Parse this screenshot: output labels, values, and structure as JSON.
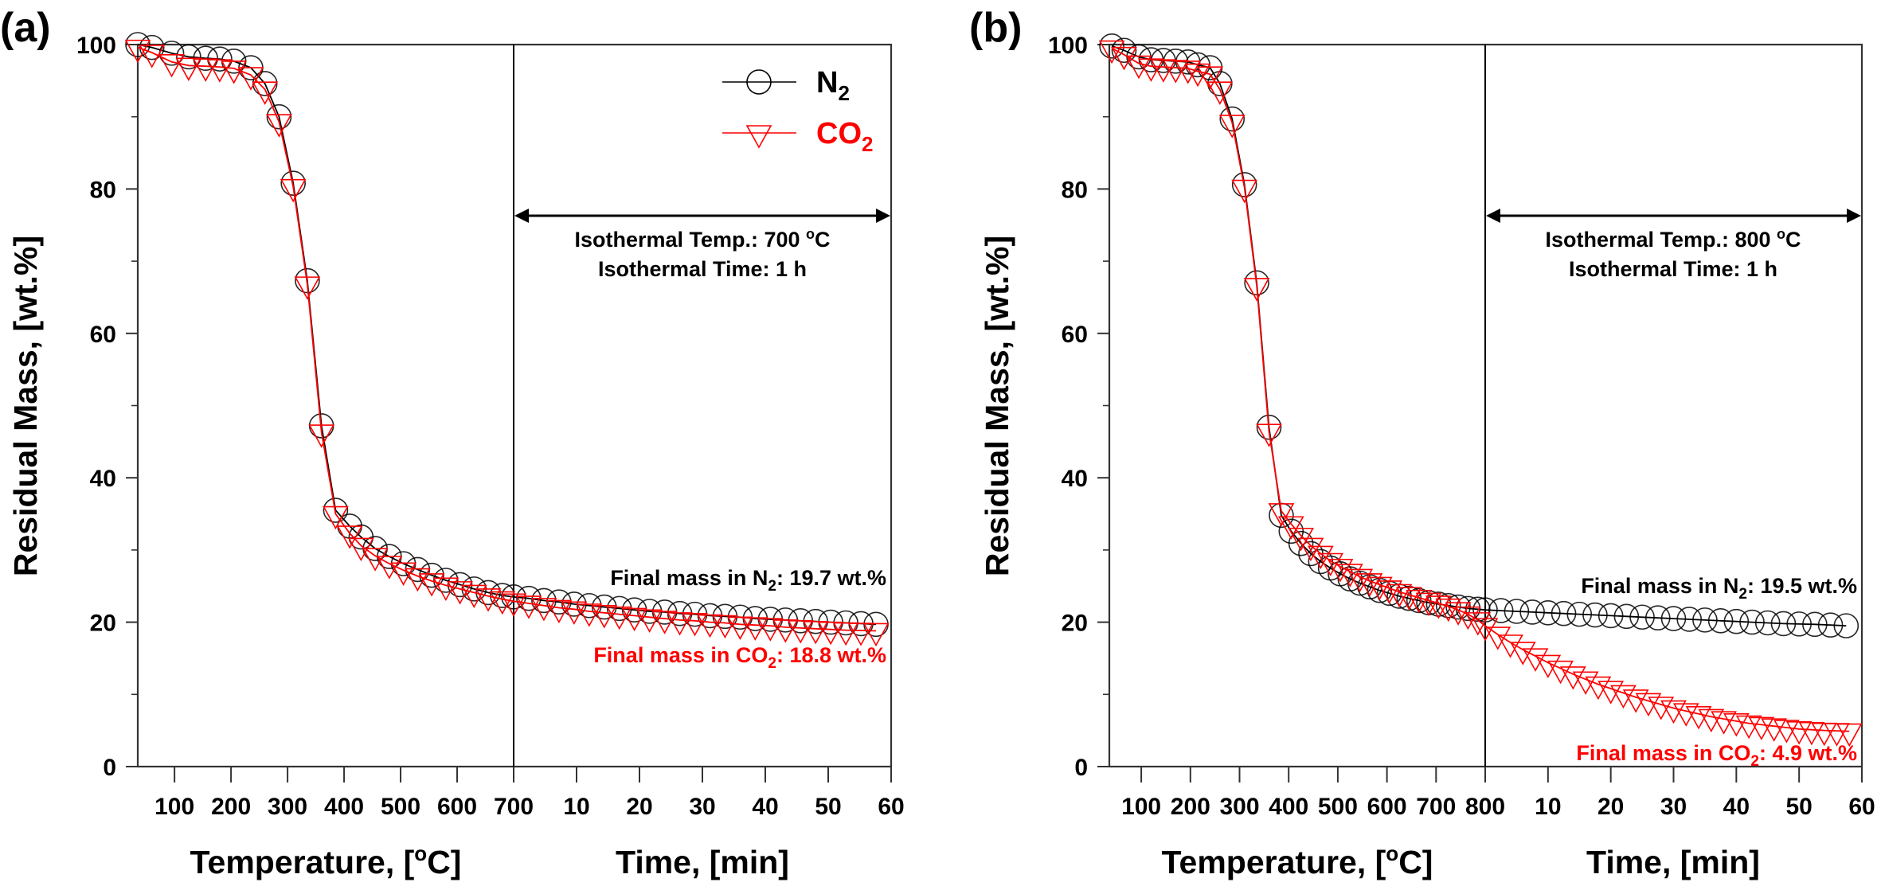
{
  "chart_data": [
    {
      "panel_label": "(a)",
      "type": "line",
      "ylabel": "Residual Mass, [wt.%]",
      "ylim": [
        0,
        100
      ],
      "yticks": [
        "0",
        "20",
        "40",
        "60",
        "80",
        "100"
      ],
      "x_segments": [
        {
          "xlabel_main": "Temperature, [",
          "xlabel_sup": "o",
          "xlabel_end": "C]",
          "unit": "temperature",
          "xlim": [
            35,
            700
          ],
          "ticks": [
            "100",
            "200",
            "300",
            "400",
            "500",
            "600",
            "700"
          ]
        },
        {
          "xlabel_main": "Time, [min]",
          "unit": "time",
          "xlim": [
            0,
            60
          ],
          "ticks": [
            "10",
            "20",
            "30",
            "40",
            "50",
            "60"
          ]
        }
      ],
      "legend": {
        "position": "top-right",
        "entries": [
          {
            "label": "N",
            "sub": "2",
            "marker": "circle",
            "color": "#000000"
          },
          {
            "label": "CO",
            "sub": "2",
            "marker": "triangle-down",
            "color": "#ff0000"
          }
        ]
      },
      "annotations": {
        "isothermal_temp": "Isothermal Temp.: 700 ",
        "isothermal_temp_sup": "o",
        "isothermal_temp_end": "C",
        "isothermal_time": "Isothermal Time: 1 h",
        "final_n2_pre": "Final mass in N",
        "final_n2_sub": "2",
        "final_n2_post": ": 19.7 wt.%",
        "final_co2_pre": "Final mass in CO",
        "final_co2_sub": "2",
        "final_co2_post": ": 18.8 wt.%"
      },
      "series": [
        {
          "name": "N2",
          "color": "#000000",
          "temperature_points": [
            [
              35,
              100
            ],
            [
              60,
              99.6
            ],
            [
              95,
              98.8
            ],
            [
              125,
              98.3
            ],
            [
              155,
              98.1
            ],
            [
              180,
              98.0
            ],
            [
              205,
              97.7
            ],
            [
              235,
              96.8
            ],
            [
              260,
              94.6
            ],
            [
              285,
              90.0
            ],
            [
              310,
              80.8
            ],
            [
              335,
              67.3
            ],
            [
              360,
              47.2
            ],
            [
              385,
              35.5
            ],
            [
              410,
              33.3
            ],
            [
              430,
              31.8
            ],
            [
              455,
              30.2
            ],
            [
              480,
              29.1
            ],
            [
              505,
              28.1
            ],
            [
              530,
              27.3
            ],
            [
              555,
              26.5
            ],
            [
              580,
              25.8
            ],
            [
              605,
              25.2
            ],
            [
              630,
              24.6
            ],
            [
              655,
              24.1
            ],
            [
              680,
              23.7
            ],
            [
              700,
              23.5
            ]
          ],
          "time_points": [
            [
              2.4,
              23.3
            ],
            [
              4.8,
              23.0
            ],
            [
              7.2,
              22.8
            ],
            [
              9.6,
              22.5
            ],
            [
              12,
              22.3
            ],
            [
              14.4,
              22.1
            ],
            [
              16.8,
              21.9
            ],
            [
              19.2,
              21.7
            ],
            [
              21.6,
              21.5
            ],
            [
              24,
              21.4
            ],
            [
              26.4,
              21.2
            ],
            [
              28.8,
              21.1
            ],
            [
              31.2,
              20.9
            ],
            [
              33.6,
              20.8
            ],
            [
              36,
              20.7
            ],
            [
              38.4,
              20.5
            ],
            [
              40.8,
              20.4
            ],
            [
              43.2,
              20.3
            ],
            [
              45.6,
              20.2
            ],
            [
              48,
              20.1
            ],
            [
              50.4,
              20.0
            ],
            [
              52.8,
              19.9
            ],
            [
              55.2,
              19.8
            ],
            [
              57.6,
              19.7
            ]
          ]
        },
        {
          "name": "CO2",
          "color": "#ff0000",
          "temperature_points": [
            [
              35,
              99.6
            ],
            [
              60,
              98.9
            ],
            [
              95,
              97.6
            ],
            [
              125,
              97.1
            ],
            [
              155,
              97.0
            ],
            [
              180,
              96.9
            ],
            [
              205,
              96.7
            ],
            [
              235,
              95.8
            ],
            [
              260,
              93.8
            ],
            [
              285,
              89.3
            ],
            [
              310,
              80.3
            ],
            [
              335,
              66.8
            ],
            [
              360,
              46.3
            ],
            [
              385,
              35.0
            ],
            [
              410,
              32.3
            ],
            [
              430,
              30.6
            ],
            [
              455,
              29.2
            ],
            [
              480,
              28.1
            ],
            [
              505,
              27.2
            ],
            [
              530,
              26.4
            ],
            [
              555,
              25.7
            ],
            [
              580,
              25.1
            ],
            [
              605,
              24.6
            ],
            [
              630,
              24.1
            ],
            [
              655,
              23.6
            ],
            [
              680,
              23.2
            ],
            [
              700,
              22.9
            ]
          ],
          "time_points": [
            [
              2.4,
              22.6
            ],
            [
              4.8,
              22.3
            ],
            [
              7.2,
              22.0
            ],
            [
              9.6,
              21.8
            ],
            [
              12,
              21.5
            ],
            [
              14.4,
              21.3
            ],
            [
              16.8,
              21.1
            ],
            [
              19.2,
              20.9
            ],
            [
              21.6,
              20.7
            ],
            [
              24,
              20.5
            ],
            [
              26.4,
              20.3
            ],
            [
              28.8,
              20.2
            ],
            [
              31.2,
              20.0
            ],
            [
              33.6,
              19.9
            ],
            [
              36,
              19.7
            ],
            [
              38.4,
              19.6
            ],
            [
              40.8,
              19.5
            ],
            [
              43.2,
              19.3
            ],
            [
              45.6,
              19.2
            ],
            [
              48,
              19.1
            ],
            [
              50.4,
              19.0
            ],
            [
              52.8,
              18.9
            ],
            [
              55.2,
              18.85
            ],
            [
              57.6,
              18.8
            ]
          ]
        }
      ]
    },
    {
      "panel_label": "(b)",
      "type": "line",
      "ylabel": "Residual Mass, [wt.%]",
      "ylim": [
        0,
        100
      ],
      "yticks": [
        "0",
        "20",
        "40",
        "60",
        "80",
        "100"
      ],
      "x_segments": [
        {
          "xlabel_main": "Temperature, [",
          "xlabel_sup": "o",
          "xlabel_end": "C]",
          "unit": "temperature",
          "xlim": [
            35,
            800
          ],
          "ticks": [
            "100",
            "200",
            "300",
            "400",
            "500",
            "600",
            "700",
            "800"
          ]
        },
        {
          "xlabel_main": "Time, [min]",
          "unit": "time",
          "xlim": [
            0,
            60
          ],
          "ticks": [
            "10",
            "20",
            "30",
            "40",
            "50",
            "60"
          ]
        }
      ],
      "annotations": {
        "isothermal_temp": "Isothermal Temp.: 800 ",
        "isothermal_temp_sup": "o",
        "isothermal_temp_end": "C",
        "isothermal_time": "Isothermal Time: 1 h",
        "final_n2_pre": "Final mass in N",
        "final_n2_sub": "2",
        "final_n2_post": ": 19.5 wt.%",
        "final_co2_pre": "Final mass in CO",
        "final_co2_sub": "2",
        "final_co2_post": ": 4.9 wt.%"
      },
      "series": [
        {
          "name": "N2",
          "color": "#000000",
          "temperature_points": [
            [
              40,
              99.8
            ],
            [
              65,
              99.2
            ],
            [
              95,
              98.3
            ],
            [
              120,
              97.9
            ],
            [
              145,
              97.8
            ],
            [
              170,
              97.7
            ],
            [
              195,
              97.6
            ],
            [
              215,
              97.2
            ],
            [
              240,
              96.8
            ],
            [
              260,
              94.6
            ],
            [
              285,
              89.7
            ],
            [
              310,
              80.6
            ],
            [
              335,
              67.0
            ],
            [
              360,
              47.0
            ],
            [
              385,
              34.8
            ],
            [
              405,
              32.6
            ],
            [
              425,
              30.9
            ],
            [
              445,
              29.5
            ],
            [
              465,
              28.4
            ],
            [
              485,
              27.5
            ],
            [
              505,
              26.7
            ],
            [
              525,
              26.0
            ],
            [
              545,
              25.4
            ],
            [
              565,
              24.9
            ],
            [
              585,
              24.4
            ],
            [
              605,
              24.0
            ],
            [
              625,
              23.6
            ],
            [
              645,
              23.3
            ],
            [
              665,
              23.0
            ],
            [
              685,
              22.7
            ],
            [
              705,
              22.5
            ],
            [
              725,
              22.3
            ],
            [
              745,
              22.1
            ],
            [
              765,
              21.9
            ],
            [
              785,
              21.8
            ],
            [
              800,
              21.7
            ]
          ],
          "time_points": [
            [
              2.5,
              21.6
            ],
            [
              5,
              21.5
            ],
            [
              7.5,
              21.4
            ],
            [
              10,
              21.3
            ],
            [
              12.5,
              21.2
            ],
            [
              15,
              21.1
            ],
            [
              17.5,
              21.0
            ],
            [
              20,
              20.9
            ],
            [
              22.5,
              20.8
            ],
            [
              25,
              20.7
            ],
            [
              27.5,
              20.6
            ],
            [
              30,
              20.5
            ],
            [
              32.5,
              20.4
            ],
            [
              35,
              20.3
            ],
            [
              37.5,
              20.2
            ],
            [
              40,
              20.1
            ],
            [
              42.5,
              20.0
            ],
            [
              45,
              19.9
            ],
            [
              47.5,
              19.8
            ],
            [
              50,
              19.75
            ],
            [
              52.5,
              19.7
            ],
            [
              55,
              19.6
            ],
            [
              57.5,
              19.5
            ]
          ]
        },
        {
          "name": "CO2",
          "color": "#ff0000",
          "temperature_points": [
            [
              40,
              99.5
            ],
            [
              65,
              98.6
            ],
            [
              95,
              97.4
            ],
            [
              120,
              97.0
            ],
            [
              145,
              96.9
            ],
            [
              170,
              96.8
            ],
            [
              195,
              96.7
            ],
            [
              215,
              96.3
            ],
            [
              240,
              95.9
            ],
            [
              260,
              93.8
            ],
            [
              285,
              89.2
            ],
            [
              310,
              80.2
            ],
            [
              335,
              66.6
            ],
            [
              360,
              46.4
            ],
            [
              385,
              35.4
            ],
            [
              405,
              33.6
            ],
            [
              425,
              32.0
            ],
            [
              445,
              30.6
            ],
            [
              465,
              29.5
            ],
            [
              485,
              28.5
            ],
            [
              505,
              27.7
            ],
            [
              525,
              27.0
            ],
            [
              545,
              26.3
            ],
            [
              565,
              25.7
            ],
            [
              585,
              25.2
            ],
            [
              605,
              24.7
            ],
            [
              625,
              24.2
            ],
            [
              645,
              23.8
            ],
            [
              665,
              23.4
            ],
            [
              685,
              23.0
            ],
            [
              705,
              22.6
            ],
            [
              725,
              22.2
            ],
            [
              745,
              21.7
            ],
            [
              765,
              21.1
            ],
            [
              785,
              20.3
            ],
            [
              800,
              19.5
            ]
          ],
          "time_points": [
            [
              2,
              18.3
            ],
            [
              4,
              17.2
            ],
            [
              6,
              16.2
            ],
            [
              8,
              15.3
            ],
            [
              10,
              14.4
            ],
            [
              12,
              13.6
            ],
            [
              14,
              12.8
            ],
            [
              16,
              12.1
            ],
            [
              18,
              11.4
            ],
            [
              20,
              10.8
            ],
            [
              22,
              10.2
            ],
            [
              24,
              9.6
            ],
            [
              26,
              9.1
            ],
            [
              28,
              8.6
            ],
            [
              30,
              8.1
            ],
            [
              32,
              7.7
            ],
            [
              34,
              7.3
            ],
            [
              36,
              6.9
            ],
            [
              38,
              6.6
            ],
            [
              40,
              6.3
            ],
            [
              42,
              6.0
            ],
            [
              44,
              5.8
            ],
            [
              46,
              5.6
            ],
            [
              48,
              5.4
            ],
            [
              50,
              5.2
            ],
            [
              52,
              5.1
            ],
            [
              54,
              5.0
            ],
            [
              56,
              4.95
            ],
            [
              58,
              4.9
            ]
          ]
        }
      ]
    }
  ]
}
